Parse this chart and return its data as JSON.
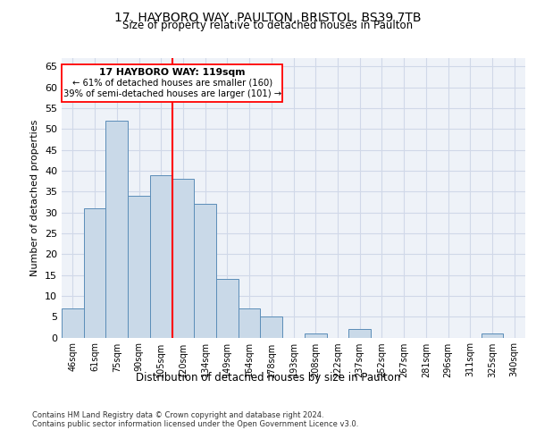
{
  "title_line1": "17, HAYBORO WAY, PAULTON, BRISTOL, BS39 7TB",
  "title_line2": "Size of property relative to detached houses in Paulton",
  "xlabel": "Distribution of detached houses by size in Paulton",
  "ylabel": "Number of detached properties",
  "categories": [
    "46sqm",
    "61sqm",
    "75sqm",
    "90sqm",
    "105sqm",
    "120sqm",
    "134sqm",
    "149sqm",
    "164sqm",
    "178sqm",
    "193sqm",
    "208sqm",
    "222sqm",
    "237sqm",
    "252sqm",
    "267sqm",
    "281sqm",
    "296sqm",
    "311sqm",
    "325sqm",
    "340sqm"
  ],
  "values": [
    7,
    31,
    52,
    34,
    39,
    38,
    32,
    14,
    7,
    5,
    0,
    1,
    0,
    2,
    0,
    0,
    0,
    0,
    0,
    1,
    0
  ],
  "bar_color": "#c9d9e8",
  "bar_edge_color": "#5b8db8",
  "grid_color": "#d0d8e8",
  "background_color": "#eef2f8",
  "annotation_text_line1": "17 HAYBORO WAY: 119sqm",
  "annotation_text_line2": "← 61% of detached houses are smaller (160)",
  "annotation_text_line3": "39% of semi-detached houses are larger (101) →",
  "ylim": [
    0,
    67
  ],
  "yticks": [
    0,
    5,
    10,
    15,
    20,
    25,
    30,
    35,
    40,
    45,
    50,
    55,
    60,
    65
  ],
  "red_line_index": 5,
  "footnote_line1": "Contains HM Land Registry data © Crown copyright and database right 2024.",
  "footnote_line2": "Contains public sector information licensed under the Open Government Licence v3.0."
}
